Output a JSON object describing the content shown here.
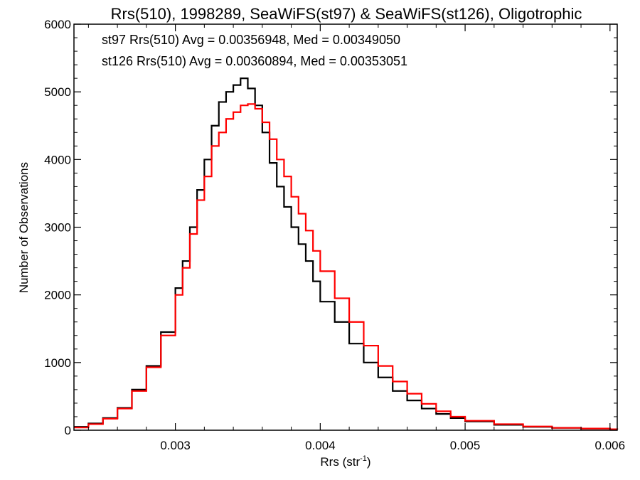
{
  "chart_data": {
    "type": "line",
    "title": "Rrs(510), 1998289, SeaWiFS(st97) & SeaWiFS(st126), Oligotrophic",
    "xlabel": "Rrs (str",
    "xlabel_sup": "-1",
    "xlabel_close": ")",
    "ylabel": "Number of Observations",
    "xlim": [
      0.0023,
      0.00605
    ],
    "ylim": [
      0,
      6000
    ],
    "xticks": [
      0.003,
      0.004,
      0.005,
      0.006
    ],
    "xtick_labels": [
      "0.003",
      "0.004",
      "0.005",
      "0.006"
    ],
    "yticks": [
      0,
      1000,
      2000,
      3000,
      4000,
      5000,
      6000
    ],
    "ytick_labels": [
      "0",
      "1000",
      "2000",
      "3000",
      "4000",
      "5000",
      "6000"
    ],
    "step": "histogram",
    "grid": false,
    "annotations": [
      {
        "text": "st97 Rrs(510) Avg = 0.00356948, Med = 0.00349050",
        "color": "#000000"
      },
      {
        "text": "st126 Rrs(510) Avg = 0.00360894, Med = 0.00353051",
        "color": "#ff0000"
      }
    ],
    "series": [
      {
        "color": "#000000",
        "x": [
          0.0023,
          0.0024,
          0.0025,
          0.0026,
          0.0027,
          0.0028,
          0.0029,
          0.003,
          0.00305,
          0.0031,
          0.00315,
          0.0032,
          0.00325,
          0.0033,
          0.00335,
          0.0034,
          0.00345,
          0.0035,
          0.00355,
          0.0036,
          0.00365,
          0.0037,
          0.00375,
          0.0038,
          0.00385,
          0.0039,
          0.00395,
          0.004,
          0.0041,
          0.0042,
          0.0043,
          0.0044,
          0.0045,
          0.0046,
          0.0047,
          0.0048,
          0.0049,
          0.005,
          0.0052,
          0.0054,
          0.0056,
          0.0058,
          0.006,
          0.00605
        ],
        "y": [
          50,
          100,
          180,
          330,
          600,
          950,
          1450,
          2100,
          2500,
          3000,
          3550,
          4000,
          4500,
          4850,
          5000,
          5100,
          5200,
          5050,
          4800,
          4400,
          3950,
          3600,
          3300,
          3000,
          2750,
          2500,
          2200,
          1900,
          1600,
          1280,
          1000,
          780,
          580,
          440,
          320,
          240,
          180,
          130,
          80,
          50,
          35,
          25,
          15,
          10
        ]
      },
      {
        "color": "#ff0000",
        "x": [
          0.0023,
          0.0024,
          0.0025,
          0.0026,
          0.0027,
          0.0028,
          0.0029,
          0.003,
          0.00305,
          0.0031,
          0.00315,
          0.0032,
          0.00325,
          0.0033,
          0.00335,
          0.0034,
          0.00345,
          0.0035,
          0.00355,
          0.0036,
          0.00365,
          0.0037,
          0.00375,
          0.0038,
          0.00385,
          0.0039,
          0.00395,
          0.004,
          0.0041,
          0.0042,
          0.0043,
          0.0044,
          0.0045,
          0.0046,
          0.0047,
          0.0048,
          0.0049,
          0.005,
          0.0052,
          0.0054,
          0.0056,
          0.0058,
          0.006,
          0.00605
        ],
        "y": [
          40,
          90,
          170,
          320,
          580,
          930,
          1400,
          2000,
          2400,
          2900,
          3400,
          3750,
          4200,
          4400,
          4600,
          4700,
          4800,
          4820,
          4750,
          4550,
          4300,
          4000,
          3750,
          3450,
          3200,
          2950,
          2650,
          2350,
          1950,
          1600,
          1250,
          950,
          720,
          540,
          390,
          280,
          200,
          140,
          90,
          55,
          35,
          25,
          15,
          10
        ]
      }
    ]
  }
}
